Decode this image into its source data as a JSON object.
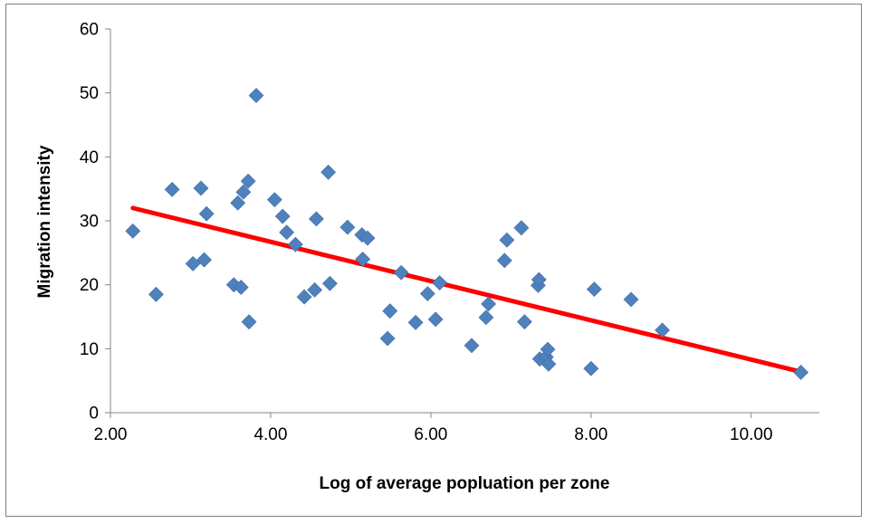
{
  "chart_data": {
    "type": "scatter",
    "title": "",
    "xlabel": "Log of average popluation per zone",
    "ylabel": "Migration intensity",
    "xlim": [
      2.0,
      10.0
    ],
    "ylim": [
      0,
      60
    ],
    "x_axis_max": 10.85,
    "x_ticks": [
      2.0,
      4.0,
      6.0,
      8.0,
      10.0
    ],
    "x_tick_labels": [
      "2.00",
      "4.00",
      "6.00",
      "8.00",
      "10.00"
    ],
    "y_ticks": [
      0,
      10,
      20,
      30,
      40,
      50,
      60
    ],
    "y_tick_labels": [
      "0",
      "10",
      "20",
      "30",
      "40",
      "50",
      "60"
    ],
    "grid": false,
    "legend": "none",
    "series": [
      {
        "color": "#4f81bd",
        "marker": "diamond",
        "points": [
          [
            2.28,
            28.4
          ],
          [
            2.57,
            18.5
          ],
          [
            2.77,
            34.9
          ],
          [
            3.03,
            23.3
          ],
          [
            3.13,
            35.1
          ],
          [
            3.17,
            23.9
          ],
          [
            3.2,
            31.1
          ],
          [
            3.54,
            20.0
          ],
          [
            3.59,
            32.8
          ],
          [
            3.63,
            19.6
          ],
          [
            3.66,
            34.5
          ],
          [
            3.72,
            36.2
          ],
          [
            3.73,
            14.2
          ],
          [
            3.82,
            49.6
          ],
          [
            4.05,
            33.3
          ],
          [
            4.15,
            30.7
          ],
          [
            4.2,
            28.2
          ],
          [
            4.31,
            26.3
          ],
          [
            4.42,
            18.1
          ],
          [
            4.55,
            19.2
          ],
          [
            4.57,
            30.3
          ],
          [
            4.72,
            37.6
          ],
          [
            4.74,
            20.2
          ],
          [
            4.96,
            29.0
          ],
          [
            5.14,
            27.8
          ],
          [
            5.15,
            24.0
          ],
          [
            5.21,
            27.3
          ],
          [
            5.46,
            11.6
          ],
          [
            5.49,
            15.9
          ],
          [
            5.63,
            21.9
          ],
          [
            5.81,
            14.1
          ],
          [
            5.96,
            18.6
          ],
          [
            6.06,
            14.6
          ],
          [
            6.11,
            20.3
          ],
          [
            6.51,
            10.5
          ],
          [
            6.69,
            14.9
          ],
          [
            6.72,
            17.0
          ],
          [
            6.92,
            23.8
          ],
          [
            6.95,
            27.0
          ],
          [
            7.13,
            28.9
          ],
          [
            7.17,
            14.2
          ],
          [
            7.34,
            19.9
          ],
          [
            7.35,
            20.8
          ],
          [
            7.36,
            8.4
          ],
          [
            7.44,
            8.7
          ],
          [
            7.46,
            9.9
          ],
          [
            7.47,
            7.6
          ],
          [
            8.0,
            6.9
          ],
          [
            8.04,
            19.3
          ],
          [
            8.5,
            17.7
          ],
          [
            8.89,
            12.9
          ],
          [
            10.62,
            6.3
          ]
        ]
      }
    ],
    "trendline": {
      "color": "#ff0000",
      "points": [
        [
          2.28,
          32.0
        ],
        [
          10.62,
          6.4
        ]
      ]
    }
  }
}
